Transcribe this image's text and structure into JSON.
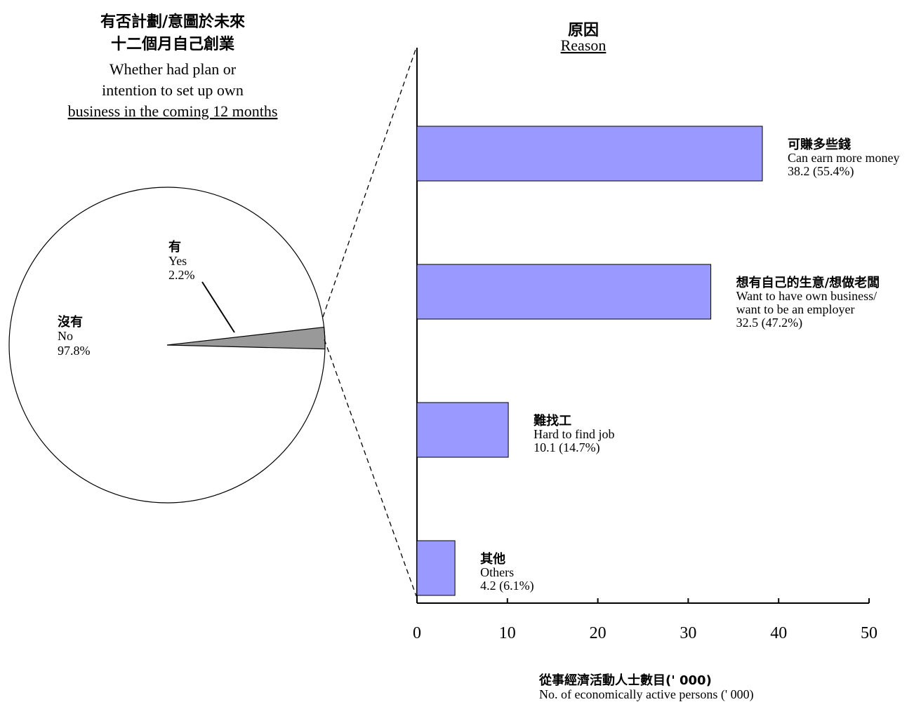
{
  "pie": {
    "title_zh": [
      "有否計劃/意圖於未來",
      "十二個月自己創業"
    ],
    "title_en": [
      "Whether had plan or",
      "intention to set up own",
      "business in the coming 12 months"
    ],
    "labels": {
      "yes": {
        "zh": "有",
        "en": "Yes",
        "pct": "2.2%"
      },
      "no": {
        "zh": "沒有",
        "en": "No",
        "pct": "97.8%"
      }
    }
  },
  "bar": {
    "title_zh": "原因",
    "title_en": "Reason",
    "xlabel_zh": "從事經濟活動人士數目('  000)",
    "xlabel_en": "No. of economically active persons ('  000)"
  },
  "colors": {
    "bar": "#9999ff",
    "slice": "#999999",
    "pie_bg": "#ffffff"
  },
  "chart_data": [
    {
      "type": "pie",
      "title": "有否計劃/意圖於未來十二個月自己創業 Whether had plan or intention to set up own business in the coming 12 months",
      "slices": [
        {
          "name": "有 Yes",
          "value": 2.2
        },
        {
          "name": "沒有 No",
          "value": 97.8
        }
      ]
    },
    {
      "type": "bar",
      "orientation": "horizontal",
      "title": "原因 Reason",
      "xlabel": "從事經濟活動人士數目('  000) No. of economically active persons ('  000)",
      "xlim": [
        0,
        50
      ],
      "xticks": [
        0,
        10,
        20,
        30,
        40,
        50
      ],
      "categories": [
        {
          "zh": "可賺多些錢",
          "en": [
            "Can earn more money"
          ]
        },
        {
          "zh": "想有自己的生意/想做老闆",
          "en": [
            "Want to have own business/",
            "want to be an employer"
          ]
        },
        {
          "zh": "難找工",
          "en": [
            "Hard to find job"
          ]
        },
        {
          "zh": "其他",
          "en": [
            "Others"
          ]
        }
      ],
      "values": [
        38.2,
        32.5,
        10.1,
        4.2
      ],
      "value_labels": [
        "38.2 (55.4%)",
        "32.5 (47.2%)",
        "10.1 (14.7%)",
        "4.2 (6.1%)"
      ]
    }
  ]
}
